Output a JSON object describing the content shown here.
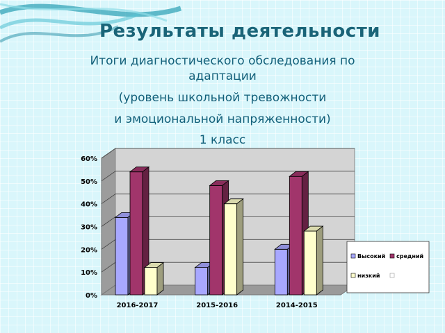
{
  "slide": {
    "title": "Результаты деятельности",
    "subtitle_lines": [
      "Итоги диагностического обследования по",
      "адаптации",
      "(уровень школьной тревожности",
      "и эмоциональной напряженности)",
      "1 класс"
    ]
  },
  "chart_data": {
    "type": "bar",
    "categories": [
      "2016-2017",
      "2015-2016",
      "2014-2015"
    ],
    "series": [
      {
        "name": "Высокий",
        "values": [
          34,
          12,
          20
        ],
        "color": "#a8a8ff"
      },
      {
        "name": "средний",
        "values": [
          54,
          48,
          52
        ],
        "color": "#a1356b"
      },
      {
        "name": "низкий",
        "values": [
          12,
          40,
          28
        ],
        "color": "#ffffcc"
      }
    ],
    "ylim": [
      0,
      60
    ],
    "yticks": [
      "0%",
      "10%",
      "20%",
      "30%",
      "40%",
      "50%",
      "60%"
    ],
    "grid": true,
    "legend": "right"
  }
}
